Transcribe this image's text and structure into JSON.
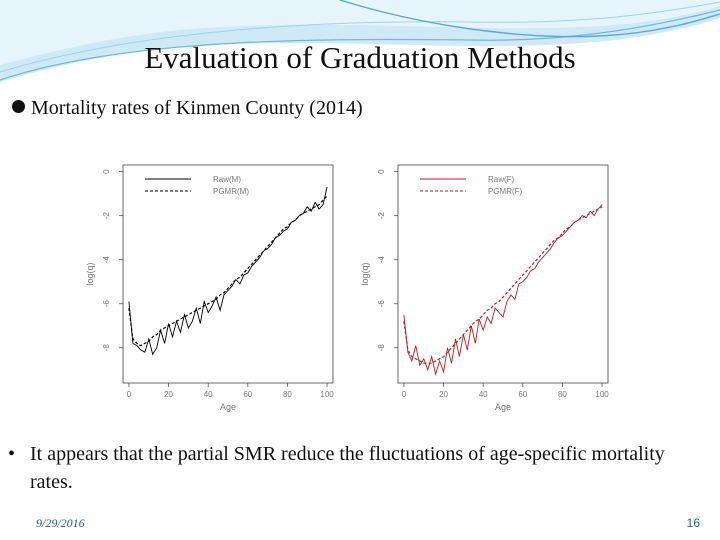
{
  "slide": {
    "title": "Evaluation of Graduation Methods",
    "subtitle": "Mortality rates of Kinmen County (2014)",
    "caption_bullet": "•",
    "caption": "It appears that the partial SMR reduce the fluctuations of age-specific mortality rates.",
    "footer_date": "9/29/2016",
    "page_number": "16"
  },
  "colors": {
    "decor": "#9fd3ec",
    "male": "#000000",
    "female": "#b22222"
  },
  "chart_data": [
    {
      "type": "line",
      "title": "",
      "xlabel": "Age",
      "ylabel": "log(q)",
      "xlim": [
        -3,
        103
      ],
      "ylim": [
        -9.6,
        0.3
      ],
      "xticks": [
        0,
        20,
        40,
        60,
        80,
        100
      ],
      "yticks": [
        0,
        -2,
        -4,
        -6,
        -8
      ],
      "ytick_labels": [
        "0",
        "-2",
        "-4",
        "-6",
        "-8"
      ],
      "legend_position": "top-right",
      "grid": false,
      "x": [
        0,
        2,
        4,
        6,
        8,
        10,
        12,
        14,
        16,
        18,
        20,
        22,
        24,
        26,
        28,
        30,
        32,
        34,
        36,
        38,
        40,
        42,
        44,
        46,
        48,
        50,
        52,
        54,
        56,
        58,
        60,
        62,
        64,
        66,
        68,
        70,
        72,
        74,
        76,
        78,
        80,
        82,
        84,
        86,
        88,
        90,
        92,
        94,
        96,
        98,
        100
      ],
      "series": [
        {
          "name": "Raw(M)",
          "style": "solid",
          "color": "#000000",
          "values": [
            -5.9,
            -7.8,
            -7.9,
            -8.1,
            -8.2,
            -7.6,
            -8.3,
            -8.0,
            -7.2,
            -7.8,
            -6.9,
            -7.5,
            -6.8,
            -7.3,
            -6.5,
            -7.1,
            -6.8,
            -6.2,
            -6.9,
            -5.9,
            -6.4,
            -6.1,
            -5.7,
            -6.3,
            -5.6,
            -5.4,
            -5.2,
            -4.9,
            -5.1,
            -4.7,
            -4.6,
            -4.3,
            -4.1,
            -3.9,
            -3.6,
            -3.5,
            -3.3,
            -3.0,
            -2.9,
            -2.7,
            -2.6,
            -2.3,
            -2.2,
            -2.0,
            -1.9,
            -1.6,
            -1.8,
            -1.4,
            -1.7,
            -1.5,
            -0.7
          ]
        },
        {
          "name": "PGMR(M)",
          "style": "dashed",
          "color": "#000000",
          "values": [
            -6.2,
            -7.6,
            -7.8,
            -7.9,
            -7.8,
            -7.7,
            -7.5,
            -7.4,
            -7.2,
            -7.1,
            -7.0,
            -6.9,
            -6.8,
            -6.7,
            -6.6,
            -6.5,
            -6.4,
            -6.3,
            -6.2,
            -6.1,
            -6.0,
            -5.9,
            -5.8,
            -5.6,
            -5.5,
            -5.3,
            -5.1,
            -4.9,
            -4.8,
            -4.6,
            -4.4,
            -4.2,
            -4.0,
            -3.8,
            -3.6,
            -3.4,
            -3.2,
            -3.0,
            -2.8,
            -2.6,
            -2.5,
            -2.3,
            -2.2,
            -2.0,
            -1.9,
            -1.8,
            -1.7,
            -1.6,
            -1.5,
            -1.3,
            -1.1
          ]
        }
      ]
    },
    {
      "type": "line",
      "title": "",
      "xlabel": "Age",
      "ylabel": "log(q)",
      "xlim": [
        -3,
        103
      ],
      "ylim": [
        -9.6,
        0.3
      ],
      "xticks": [
        0,
        20,
        40,
        60,
        80,
        100
      ],
      "yticks": [
        0,
        -2,
        -4,
        -6,
        -8
      ],
      "ytick_labels": [
        "0",
        "-2",
        "-4",
        "-6",
        "-8"
      ],
      "legend_position": "top-right",
      "grid": false,
      "x": [
        0,
        2,
        4,
        6,
        8,
        10,
        12,
        14,
        16,
        18,
        20,
        22,
        24,
        26,
        28,
        30,
        32,
        34,
        36,
        38,
        40,
        42,
        44,
        46,
        48,
        50,
        52,
        54,
        56,
        58,
        60,
        62,
        64,
        66,
        68,
        70,
        72,
        74,
        76,
        78,
        80,
        82,
        84,
        86,
        88,
        90,
        92,
        94,
        96,
        98,
        100
      ],
      "series": [
        {
          "name": "Raw(F)",
          "style": "solid",
          "color": "#b22222",
          "values": [
            -6.5,
            -8.2,
            -8.6,
            -7.9,
            -8.8,
            -8.5,
            -9.0,
            -8.4,
            -9.2,
            -8.6,
            -9.1,
            -8.0,
            -8.7,
            -7.6,
            -8.4,
            -7.4,
            -8.1,
            -7.0,
            -7.8,
            -6.7,
            -7.2,
            -6.6,
            -6.9,
            -6.2,
            -6.4,
            -6.6,
            -5.9,
            -5.6,
            -5.8,
            -5.1,
            -5.0,
            -4.8,
            -4.5,
            -4.4,
            -4.1,
            -3.9,
            -3.7,
            -3.5,
            -3.2,
            -3.0,
            -2.9,
            -2.7,
            -2.5,
            -2.3,
            -2.2,
            -2.0,
            -2.1,
            -1.8,
            -2.0,
            -1.7,
            -1.5
          ]
        },
        {
          "name": "PGMR(F)",
          "style": "dashed",
          "color": "#b22222",
          "values": [
            -6.8,
            -8.1,
            -8.4,
            -8.5,
            -8.6,
            -8.7,
            -8.7,
            -8.7,
            -8.6,
            -8.5,
            -8.4,
            -8.2,
            -8.0,
            -7.8,
            -7.6,
            -7.4,
            -7.2,
            -7.0,
            -6.8,
            -6.7,
            -6.5,
            -6.3,
            -6.2,
            -6.0,
            -5.9,
            -5.7,
            -5.5,
            -5.3,
            -5.1,
            -4.9,
            -4.7,
            -4.5,
            -4.3,
            -4.1,
            -3.9,
            -3.7,
            -3.5,
            -3.3,
            -3.1,
            -3.0,
            -2.8,
            -2.6,
            -2.5,
            -2.3,
            -2.2,
            -2.1,
            -2.0,
            -1.9,
            -1.8,
            -1.7,
            -1.6
          ]
        }
      ]
    }
  ]
}
